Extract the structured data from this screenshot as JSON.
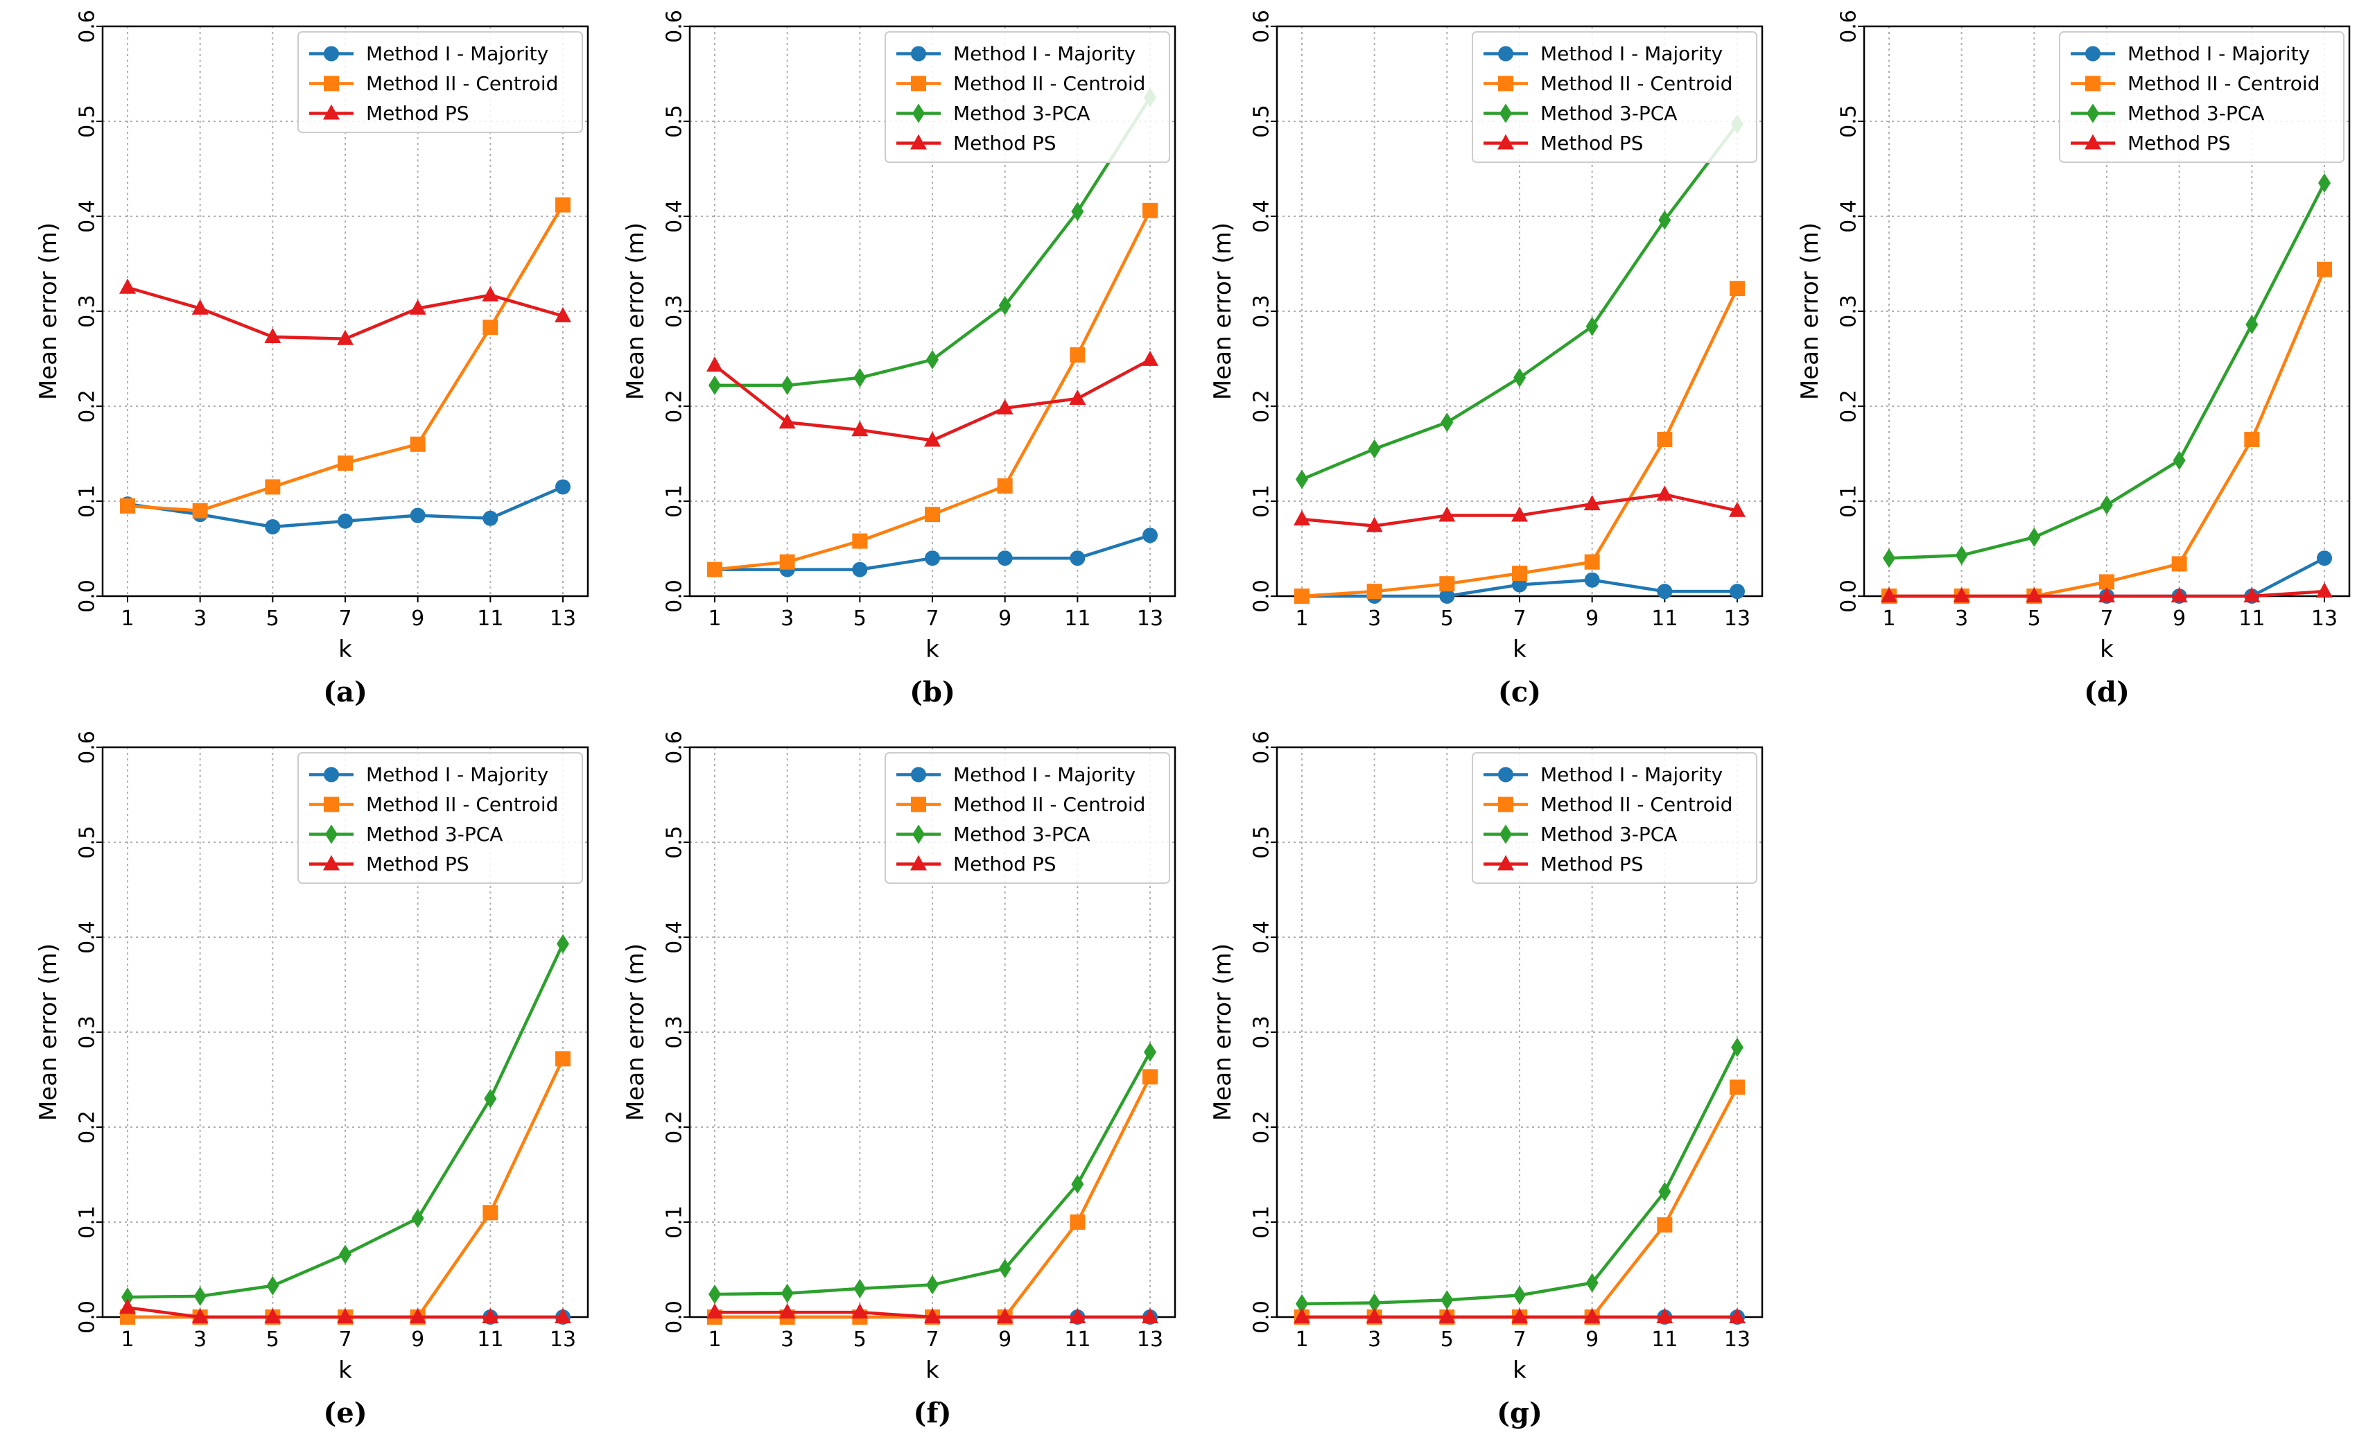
{
  "figure": {
    "series_styles": {
      "Method I - Majority": {
        "color": "#1f77b4",
        "marker": "circle"
      },
      "Method II - Centroid": {
        "color": "#ff7f0e",
        "marker": "square"
      },
      "Method 3-PCA": {
        "color": "#2ca02c",
        "marker": "diamond"
      },
      "Method PS": {
        "color": "#e41a1c",
        "marker": "triangle"
      }
    }
  },
  "chart_data": [
    {
      "type": "line",
      "caption": "(a)",
      "xlabel": "k",
      "ylabel": "Mean error (m)",
      "x": [
        1,
        3,
        5,
        7,
        9,
        11,
        13
      ],
      "xticks": [
        "1",
        "3",
        "5",
        "7",
        "9",
        "11",
        "13"
      ],
      "ylim": [
        0,
        0.6
      ],
      "yticks": [
        "0.0",
        "0.1",
        "0.2",
        "0.3",
        "0.4",
        "0.5",
        "0.6"
      ],
      "grid": true,
      "legend_position": "top-right",
      "series": [
        {
          "name": "Method I - Majority",
          "values": [
            0.097,
            0.086,
            0.073,
            0.079,
            0.085,
            0.082,
            0.115
          ]
        },
        {
          "name": "Method II - Centroid",
          "values": [
            0.095,
            0.09,
            0.115,
            0.14,
            0.16,
            0.283,
            0.412
          ]
        },
        {
          "name": "Method PS",
          "values": [
            0.325,
            0.303,
            0.273,
            0.271,
            0.303,
            0.317,
            0.295
          ]
        }
      ]
    },
    {
      "type": "line",
      "caption": "(b)",
      "xlabel": "k",
      "ylabel": "Mean error (m)",
      "x": [
        1,
        3,
        5,
        7,
        9,
        11,
        13
      ],
      "xticks": [
        "1",
        "3",
        "5",
        "7",
        "9",
        "11",
        "13"
      ],
      "ylim": [
        0,
        0.6
      ],
      "yticks": [
        "0.0",
        "0.1",
        "0.2",
        "0.3",
        "0.4",
        "0.5",
        "0.6"
      ],
      "grid": true,
      "legend_position": "top-right",
      "series": [
        {
          "name": "Method I - Majority",
          "values": [
            0.028,
            0.028,
            0.028,
            0.04,
            0.04,
            0.04,
            0.064
          ]
        },
        {
          "name": "Method II - Centroid",
          "values": [
            0.028,
            0.036,
            0.058,
            0.086,
            0.116,
            0.254,
            0.406
          ]
        },
        {
          "name": "Method 3-PCA",
          "values": [
            0.222,
            0.222,
            0.23,
            0.249,
            0.306,
            0.405,
            0.525
          ]
        },
        {
          "name": "Method PS",
          "values": [
            0.243,
            0.183,
            0.175,
            0.164,
            0.198,
            0.208,
            0.249
          ]
        }
      ]
    },
    {
      "type": "line",
      "caption": "(c)",
      "xlabel": "k",
      "ylabel": "Mean error (m)",
      "x": [
        1,
        3,
        5,
        7,
        9,
        11,
        13
      ],
      "xticks": [
        "1",
        "3",
        "5",
        "7",
        "9",
        "11",
        "13"
      ],
      "ylim": [
        0,
        0.6
      ],
      "yticks": [
        "0.0",
        "0.1",
        "0.2",
        "0.3",
        "0.4",
        "0.5",
        "0.6"
      ],
      "grid": true,
      "legend_position": "top-right",
      "series": [
        {
          "name": "Method I - Majority",
          "values": [
            0.0,
            0.0,
            0.0,
            0.012,
            0.017,
            0.005,
            0.005
          ]
        },
        {
          "name": "Method II - Centroid",
          "values": [
            0.0,
            0.005,
            0.013,
            0.024,
            0.036,
            0.165,
            0.324
          ]
        },
        {
          "name": "Method 3-PCA",
          "values": [
            0.123,
            0.155,
            0.183,
            0.23,
            0.284,
            0.396,
            0.497
          ]
        },
        {
          "name": "Method PS",
          "values": [
            0.081,
            0.074,
            0.085,
            0.085,
            0.097,
            0.107,
            0.09
          ]
        }
      ]
    },
    {
      "type": "line",
      "caption": "(d)",
      "xlabel": "k",
      "ylabel": "Mean error (m)",
      "x": [
        1,
        3,
        5,
        7,
        9,
        11,
        13
      ],
      "xticks": [
        "1",
        "3",
        "5",
        "7",
        "9",
        "11",
        "13"
      ],
      "ylim": [
        0,
        0.6
      ],
      "yticks": [
        "0.0",
        "0.1",
        "0.2",
        "0.3",
        "0.4",
        "0.5",
        "0.6"
      ],
      "grid": true,
      "legend_position": "top-right",
      "series": [
        {
          "name": "Method I - Majority",
          "values": [
            0.0,
            0.0,
            0.0,
            0.0,
            0.0,
            0.0,
            0.04
          ]
        },
        {
          "name": "Method II - Centroid",
          "values": [
            0.0,
            0.0,
            0.0,
            0.015,
            0.034,
            0.165,
            0.344
          ]
        },
        {
          "name": "Method 3-PCA",
          "values": [
            0.04,
            0.043,
            0.062,
            0.096,
            0.143,
            0.286,
            0.435
          ]
        },
        {
          "name": "Method PS",
          "values": [
            0.0,
            0.0,
            0.0,
            0.0,
            0.0,
            0.0,
            0.005
          ]
        }
      ]
    },
    {
      "type": "line",
      "caption": "(e)",
      "xlabel": "k",
      "ylabel": "Mean error (m)",
      "x": [
        1,
        3,
        5,
        7,
        9,
        11,
        13
      ],
      "xticks": [
        "1",
        "3",
        "5",
        "7",
        "9",
        "11",
        "13"
      ],
      "ylim": [
        0,
        0.6
      ],
      "yticks": [
        "0.0",
        "0.1",
        "0.2",
        "0.3",
        "0.4",
        "0.5",
        "0.6"
      ],
      "grid": true,
      "legend_position": "top-right",
      "series": [
        {
          "name": "Method I - Majority",
          "values": [
            0.0,
            0.0,
            0.0,
            0.0,
            0.0,
            0.0,
            0.0
          ]
        },
        {
          "name": "Method II - Centroid",
          "values": [
            0.0,
            0.0,
            0.0,
            0.0,
            0.0,
            0.11,
            0.272
          ]
        },
        {
          "name": "Method 3-PCA",
          "values": [
            0.021,
            0.022,
            0.033,
            0.066,
            0.104,
            0.23,
            0.393
          ]
        },
        {
          "name": "Method PS",
          "values": [
            0.01,
            0.0,
            0.0,
            0.0,
            0.0,
            0.0,
            0.0
          ]
        }
      ]
    },
    {
      "type": "line",
      "caption": "(f)",
      "xlabel": "k",
      "ylabel": "Mean error (m)",
      "x": [
        1,
        3,
        5,
        7,
        9,
        11,
        13
      ],
      "xticks": [
        "1",
        "3",
        "5",
        "7",
        "9",
        "11",
        "13"
      ],
      "ylim": [
        0,
        0.6
      ],
      "yticks": [
        "0.0",
        "0.1",
        "0.2",
        "0.3",
        "0.4",
        "0.5",
        "0.6"
      ],
      "grid": true,
      "legend_position": "top-right",
      "series": [
        {
          "name": "Method I - Majority",
          "values": [
            0.0,
            0.0,
            0.0,
            0.0,
            0.0,
            0.0,
            0.0
          ]
        },
        {
          "name": "Method II - Centroid",
          "values": [
            0.0,
            0.0,
            0.0,
            0.0,
            0.0,
            0.1,
            0.253
          ]
        },
        {
          "name": "Method 3-PCA",
          "values": [
            0.024,
            0.025,
            0.03,
            0.034,
            0.051,
            0.14,
            0.279
          ]
        },
        {
          "name": "Method PS",
          "values": [
            0.005,
            0.005,
            0.005,
            0.0,
            0.0,
            0.0,
            0.0
          ]
        }
      ]
    },
    {
      "type": "line",
      "caption": "(g)",
      "xlabel": "k",
      "ylabel": "Mean error (m)",
      "x": [
        1,
        3,
        5,
        7,
        9,
        11,
        13
      ],
      "xticks": [
        "1",
        "3",
        "5",
        "7",
        "9",
        "11",
        "13"
      ],
      "ylim": [
        0,
        0.6
      ],
      "yticks": [
        "0.0",
        "0.1",
        "0.2",
        "0.3",
        "0.4",
        "0.5",
        "0.6"
      ],
      "grid": true,
      "legend_position": "top-right",
      "series": [
        {
          "name": "Method I - Majority",
          "values": [
            0.0,
            0.0,
            0.0,
            0.0,
            0.0,
            0.0,
            0.0
          ]
        },
        {
          "name": "Method II - Centroid",
          "values": [
            0.0,
            0.0,
            0.0,
            0.0,
            0.0,
            0.097,
            0.242
          ]
        },
        {
          "name": "Method 3-PCA",
          "values": [
            0.014,
            0.015,
            0.018,
            0.023,
            0.036,
            0.132,
            0.284
          ]
        },
        {
          "name": "Method PS",
          "values": [
            0.0,
            0.0,
            0.0,
            0.0,
            0.0,
            0.0,
            0.0
          ]
        }
      ]
    }
  ]
}
